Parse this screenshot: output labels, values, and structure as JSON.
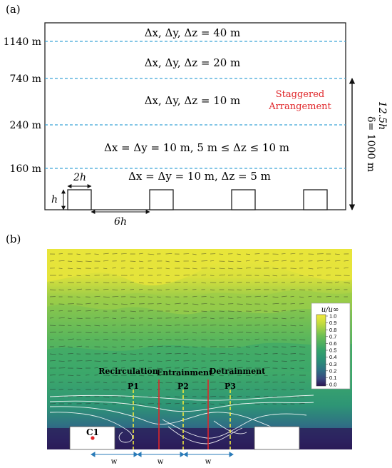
{
  "panel_a": {
    "label": "(a)",
    "layer_labels": [
      "Δx, Δy, Δz = 40 m",
      "Δx, Δy, Δz = 20 m",
      "Δx, Δy, Δz = 10 m",
      "Δx = Δy = 10 m, 5 m ≤ Δz ≤ 10 m",
      "Δx = Δy = 10 m, Δz = 5 m"
    ],
    "heights": [
      "1140 m",
      "740 m",
      "240 m",
      "160 m"
    ],
    "arrangement": [
      "Staggered",
      "Arrangement"
    ],
    "arrangement_color": "#e0262a",
    "gridline_color": "#3aa3d8",
    "delta_label": "δ= 1000 m",
    "delta_alt_label": "12.5h",
    "building_width_label": "2h",
    "building_height_label": "h",
    "spacing_label": "6h"
  },
  "panel_b": {
    "label": "(b)",
    "colorbar": {
      "title": "u/u∞",
      "ticks": [
        "1.0",
        "0.9",
        "0.8",
        "0.7",
        "0.6",
        "0.5",
        "0.4",
        "0.3",
        "0.2",
        "0.1",
        "0.0"
      ],
      "colors": [
        "#f2e93b",
        "#c5dc3f",
        "#8fc94a",
        "#5cb85a",
        "#35a46a",
        "#2a8e78",
        "#2d7582",
        "#345e86",
        "#3a4583",
        "#3b2b72",
        "#301a5a"
      ]
    },
    "region_labels": [
      "Recirculation",
      "Entrainment",
      "Detrainment"
    ],
    "probe_labels": [
      "P1",
      "P2",
      "P3"
    ],
    "point_label": "C1",
    "width_labels": [
      "w",
      "w",
      "w"
    ],
    "probe_line_color": "#f2e93b",
    "divider_color": "#e0262a",
    "marker_color": "#e0262a"
  }
}
